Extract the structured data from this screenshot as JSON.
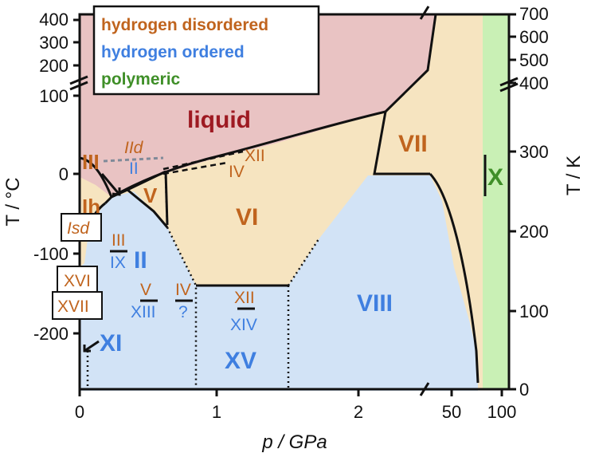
{
  "colors": {
    "disordered": "#c0641e",
    "ordered": "#3f7fe0",
    "polymeric": "#3f8f28",
    "liquid_fill": "#e9c3c3",
    "liquid_text": "#9e1a22",
    "disordered_fill": "#f6e4c0",
    "ordered_fill": "#d2e3f6",
    "polymeric_fill": "#c9f0b5"
  },
  "legend": {
    "disordered": "hydrogen disordered",
    "ordered": "hydrogen ordered",
    "polymeric": "polymeric"
  },
  "axes": {
    "left_title": "T / °C",
    "right_title": "T / K",
    "bottom_title": "p / GPa",
    "left_ticks": [
      "400",
      "300",
      "200",
      "100",
      "0",
      "-100",
      "-200"
    ],
    "right_ticks": [
      "700",
      "600",
      "500",
      "400",
      "300",
      "200",
      "100",
      "0"
    ],
    "bottom_ticks": [
      "0",
      "1",
      "2",
      "50",
      "100"
    ]
  },
  "phases": {
    "liquid": "liquid",
    "ih": "Ih",
    "III": "III",
    "V": "V",
    "VI": "VI",
    "VII": "VII",
    "VIII": "VIII",
    "II": "II",
    "XI": "XI",
    "XV": "XV",
    "X": "X",
    "IId": "IId",
    "II_small": "II",
    "XII": "XII",
    "IV": "IV",
    "isd": "Isd",
    "XVI": "XVI",
    "XVII": "XVII",
    "III_pair_top": "III",
    "III_pair_bottom": "IX",
    "V_pair_top": "V",
    "V_pair_bottom": "XIII",
    "IV_pair_top": "IV",
    "IV_pair_bottom": "?",
    "XII_pair_top": "XII",
    "XII_pair_bottom": "XIV"
  }
}
